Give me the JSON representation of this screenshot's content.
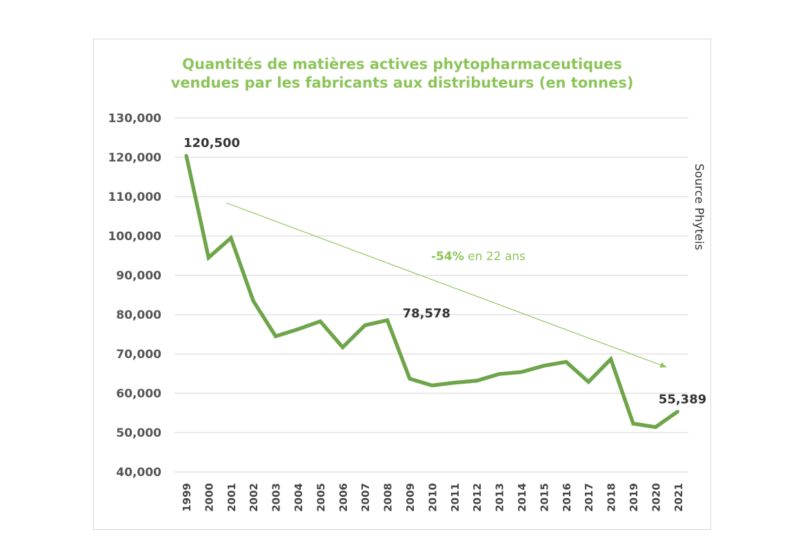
{
  "chart_data": {
    "type": "line",
    "title": "Quantités de matières actives phytopharmaceutiques vendues par les fabricants aux distributeurs (en tonnes)",
    "title_lines": [
      "Quantités de matières actives phytopharmaceutiques",
      "vendues par les fabricants aux distributeurs (en tonnes)"
    ],
    "x": [
      "1999",
      "2000",
      "2001",
      "2002",
      "2003",
      "2004",
      "2005",
      "2006",
      "2007",
      "2008",
      "2009",
      "2010",
      "2011",
      "2012",
      "2013",
      "2014",
      "2015",
      "2016",
      "2017",
      "2018",
      "2019",
      "2020",
      "2021"
    ],
    "series": [
      {
        "values": [
          120500,
          94500,
          99500,
          83500,
          74500,
          76300,
          78300,
          71700,
          77300,
          78578,
          63700,
          62000,
          62700,
          63200,
          64900,
          65400,
          67000,
          68000,
          62900,
          68700,
          52300,
          51400,
          55389
        ]
      }
    ],
    "y_tick_labels": [
      "40,000",
      "50,000",
      "60,000",
      "70,000",
      "80,000",
      "90,000",
      "100,000",
      "110,000",
      "120,000",
      "130,000"
    ],
    "y_tick_values": [
      40000,
      50000,
      60000,
      70000,
      80000,
      90000,
      100000,
      110000,
      120000,
      130000
    ],
    "ylim": [
      40000,
      130000
    ],
    "grid": true,
    "data_labels": [
      {
        "index": 0,
        "text": "120,500"
      },
      {
        "index": 9,
        "text": "78,578"
      },
      {
        "index": 22,
        "text": "55,389"
      }
    ],
    "trend_annotation": {
      "strong": "-54%",
      "rest": " en 22 ans"
    },
    "source": "Source Phyteis",
    "colors": {
      "line": "#6fa54a",
      "title": "#8cc45a",
      "trend": "#8cc45a",
      "grid": "#d3d3d3"
    }
  }
}
